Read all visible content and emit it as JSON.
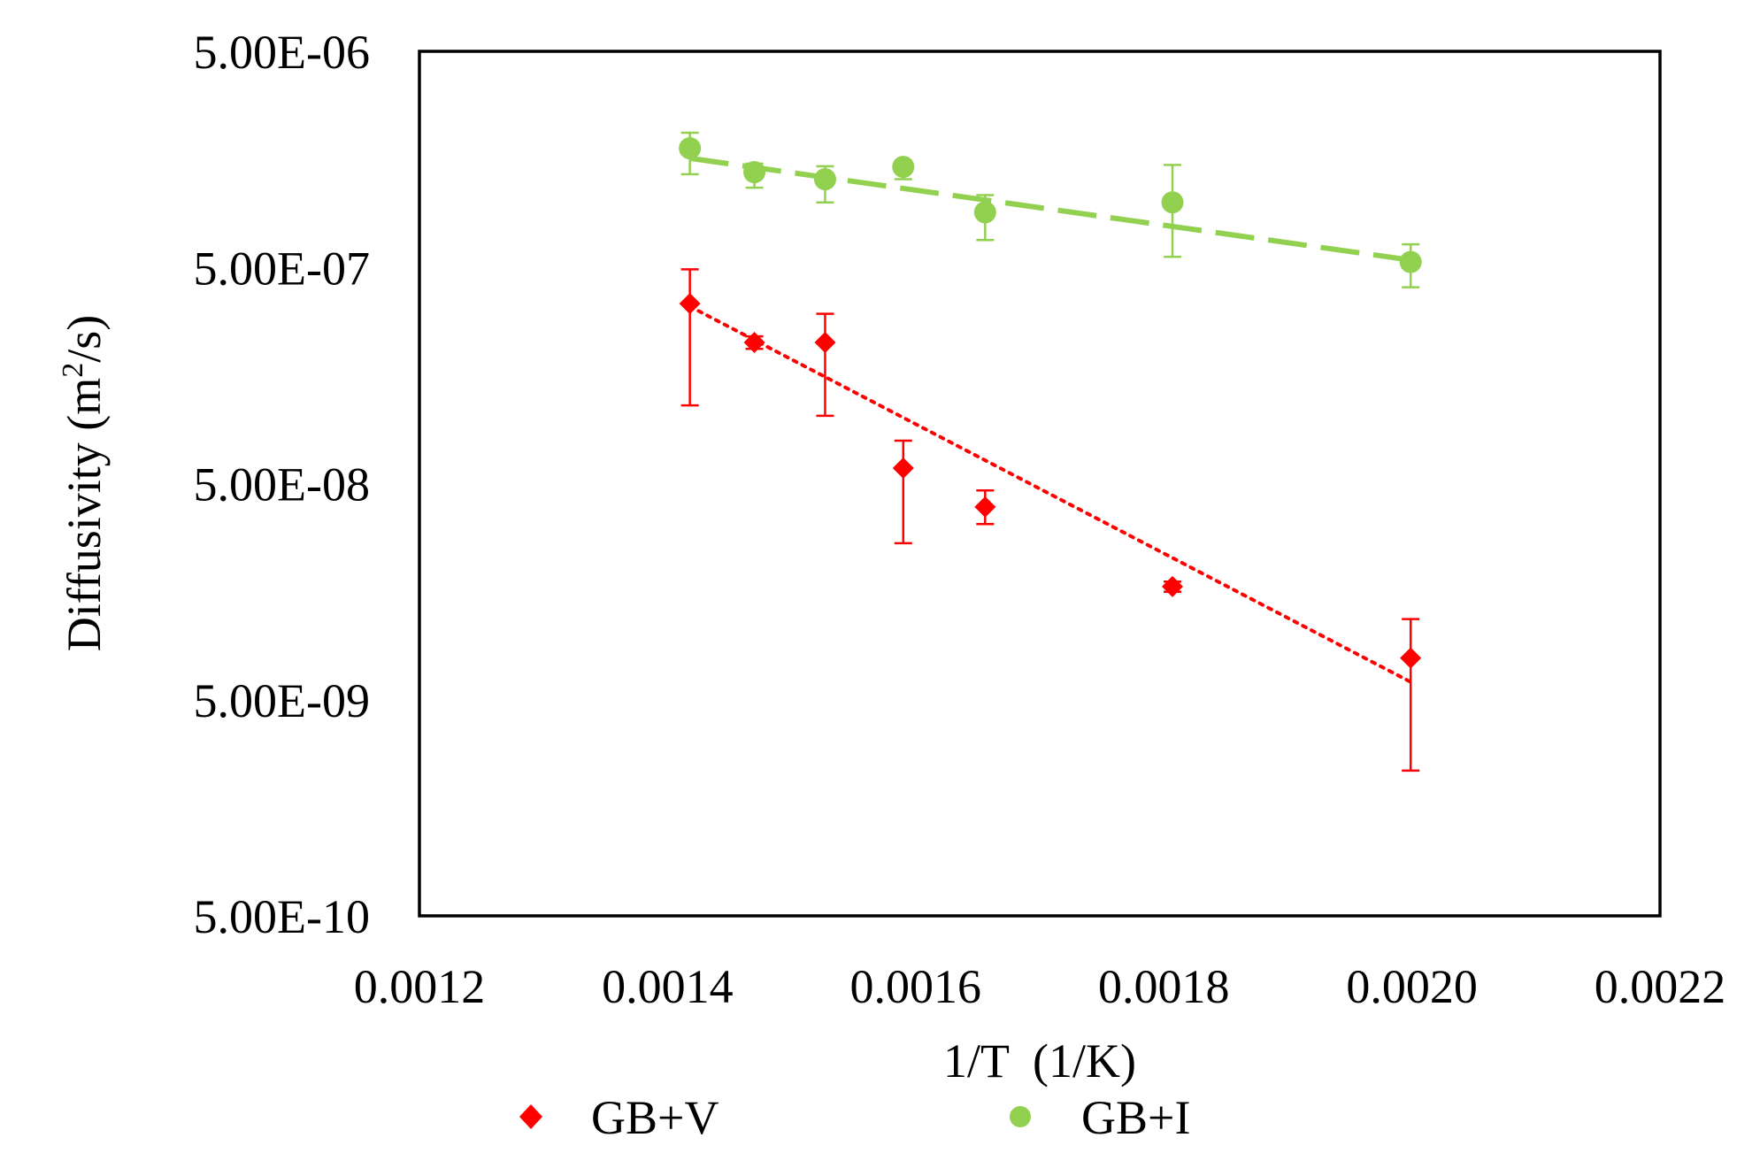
{
  "chart_data": {
    "type": "scatter",
    "xlabel": "1/T  (1/K)",
    "ylabel_main": "Diffusivity (m",
    "ylabel_sup": "2",
    "ylabel_end": "/s)",
    "xlim": [
      0.0012,
      0.0022
    ],
    "ylim": [
      5e-10,
      5e-06
    ],
    "yscale": "log",
    "x_ticks": [
      0.0012,
      0.0014,
      0.0016,
      0.0018,
      0.002,
      0.0022
    ],
    "x_tick_labels": [
      "0.0012",
      "0.0014",
      "0.0016",
      "0.0018",
      "0.0020",
      "0.0022"
    ],
    "y_ticks": [
      5e-10,
      5e-09,
      5e-08,
      5e-07,
      5e-06
    ],
    "y_tick_labels": [
      "5.00E-10",
      "5.00E-09",
      "5.00E-08",
      "5.00E-07",
      "5.00E-06"
    ],
    "grid": false,
    "legend_position": "bottom",
    "series": [
      {
        "name": "GB+V",
        "color": "#ff0000",
        "marker": "diamond",
        "trendline": "dotted",
        "trend_start": [
          0.001418,
          3.3e-07
        ],
        "trend_end": [
          0.002,
          6e-09
        ],
        "points": [
          {
            "x": 0.001418,
            "y": 3.4e-07,
            "ylo": 1.15e-07,
            "yhi": 4.9e-07
          },
          {
            "x": 0.00147,
            "y": 2.25e-07,
            "ylo": 2.1e-07,
            "yhi": 2.4e-07
          },
          {
            "x": 0.001527,
            "y": 2.25e-07,
            "ylo": 1.03e-07,
            "yhi": 3.05e-07
          },
          {
            "x": 0.00159,
            "y": 5.9e-08,
            "ylo": 2.65e-08,
            "yhi": 7.9e-08
          },
          {
            "x": 0.001656,
            "y": 3.9e-08,
            "ylo": 3.25e-08,
            "yhi": 4.65e-08
          },
          {
            "x": 0.001807,
            "y": 1.67e-08,
            "ylo": 1.58e-08,
            "yhi": 1.76e-08
          },
          {
            "x": 0.001999,
            "y": 7.8e-09,
            "ylo": 2.35e-09,
            "yhi": 1.18e-08
          }
        ]
      },
      {
        "name": "GB+I",
        "color": "#92d050",
        "marker": "circle",
        "trendline": "dashed",
        "trend_start": [
          0.001418,
          1.6e-06
        ],
        "trend_end": [
          0.002,
          5.4e-07
        ],
        "points": [
          {
            "x": 0.001418,
            "y": 1.78e-06,
            "ylo": 1.35e-06,
            "yhi": 2.1e-06
          },
          {
            "x": 0.00147,
            "y": 1.38e-06,
            "ylo": 1.17e-06,
            "yhi": 1.51e-06
          },
          {
            "x": 0.001527,
            "y": 1.28e-06,
            "ylo": 1e-06,
            "yhi": 1.47e-06
          },
          {
            "x": 0.00159,
            "y": 1.46e-06,
            "ylo": 1.28e-06,
            "yhi": 1.56e-06
          },
          {
            "x": 0.001656,
            "y": 9e-07,
            "ylo": 6.7e-07,
            "yhi": 1.08e-06
          },
          {
            "x": 0.001807,
            "y": 1e-06,
            "ylo": 5.6e-07,
            "yhi": 1.49e-06
          },
          {
            "x": 0.001999,
            "y": 5.3e-07,
            "ylo": 4.05e-07,
            "yhi": 6.4e-07
          }
        ]
      }
    ]
  }
}
